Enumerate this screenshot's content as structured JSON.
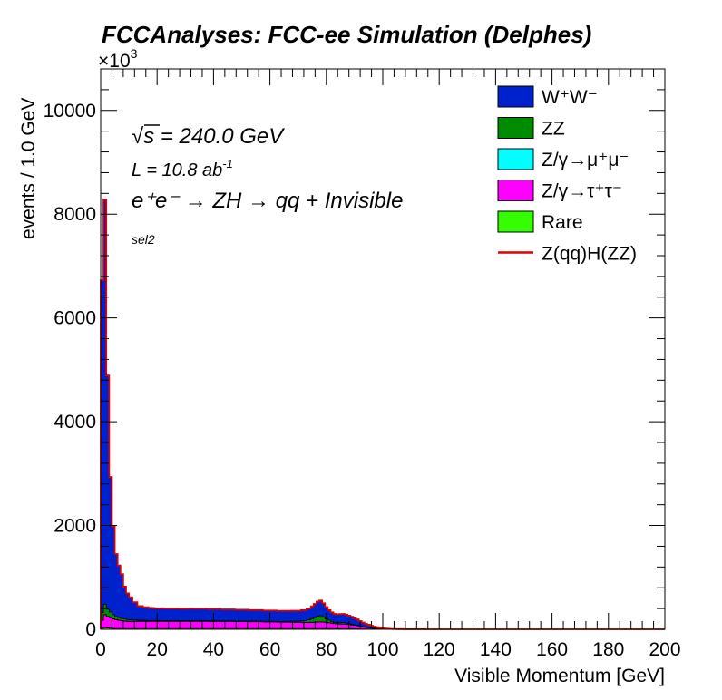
{
  "chart_data": {
    "type": "area",
    "title": "FCCAnalyses: FCC-ee Simulation (Delphes)",
    "xlabel": "Visible Momentum [GeV]",
    "ylabel": "events / 1.0 GeV",
    "y_multiplier": "×10",
    "y_multiplier_exp": "3",
    "xlim": [
      0,
      200
    ],
    "ylim": [
      0,
      10800
    ],
    "x_ticks": [
      "0",
      "20",
      "40",
      "60",
      "80",
      "100",
      "120",
      "140",
      "160",
      "180",
      "200"
    ],
    "y_ticks": [
      "0",
      "2000",
      "4000",
      "6000",
      "8000",
      "10000"
    ],
    "annotations": {
      "sqrt_s": "s = 240.0 GeV",
      "sqrt_symbol": "√",
      "lumi": "L = 10.8 ab",
      "lumi_exp": "-1",
      "process": "e⁺e⁻ → ZH → qq + Invisible",
      "selection": "sel2"
    },
    "legend_position": "top-right",
    "x": [
      0.5,
      1.5,
      2.5,
      3.5,
      4.5,
      5.5,
      6.5,
      7.5,
      8.5,
      9.5,
      10.5,
      12,
      14,
      16,
      18,
      20,
      25,
      30,
      35,
      40,
      45,
      50,
      55,
      60,
      65,
      70,
      72,
      74,
      75,
      76,
      77,
      78,
      79,
      80,
      81,
      82,
      83,
      84,
      85,
      86,
      87,
      88,
      89,
      90,
      91,
      92,
      93,
      94,
      95,
      96,
      97,
      98,
      99,
      100,
      101,
      102,
      103,
      104,
      105,
      110,
      120,
      140,
      160,
      180,
      200
    ],
    "series": [
      {
        "name": "W⁺W⁻",
        "color": "#0022cc",
        "values": [
          6400,
          7800,
          4500,
          2600,
          1700,
          1200,
          1000,
          850,
          620,
          500,
          430,
          340,
          270,
          250,
          240,
          235,
          232,
          230,
          228,
          225,
          220,
          215,
          210,
          205,
          200,
          200,
          205,
          215,
          235,
          260,
          280,
          290,
          260,
          220,
          190,
          170,
          160,
          160,
          165,
          165,
          160,
          150,
          140,
          125,
          115,
          95,
          80,
          65,
          55,
          42,
          34,
          26,
          20,
          15,
          11,
          8,
          6,
          4,
          3,
          1,
          0,
          0,
          0,
          0,
          0
        ]
      },
      {
        "name": "ZZ",
        "color": "#008c00",
        "values": [
          150,
          200,
          140,
          110,
          80,
          60,
          50,
          45,
          40,
          35,
          30,
          25,
          20,
          18,
          15,
          14,
          12,
          12,
          12,
          12,
          12,
          12,
          12,
          12,
          14,
          20,
          30,
          50,
          70,
          90,
          110,
          120,
          100,
          70,
          50,
          35,
          25,
          22,
          25,
          28,
          25,
          20,
          15,
          10,
          7,
          5,
          3,
          2,
          1,
          1,
          0,
          0,
          0,
          0,
          0,
          0,
          0,
          0,
          0,
          0,
          0,
          0,
          0,
          0,
          0
        ]
      },
      {
        "name": "Z/γ→μ⁺μ⁻",
        "color": "#00ffff",
        "values": [
          2,
          3,
          2,
          2,
          2,
          2,
          2,
          2,
          2,
          2,
          2,
          2,
          2,
          2,
          2,
          2,
          2,
          2,
          2,
          2,
          2,
          2,
          2,
          2,
          2,
          2,
          2,
          2,
          2,
          2,
          2,
          2,
          2,
          2,
          2,
          2,
          2,
          2,
          2,
          2,
          2,
          2,
          2,
          2,
          2,
          1,
          1,
          1,
          1,
          1,
          1,
          1,
          1,
          1,
          0,
          0,
          0,
          0,
          0,
          0,
          0,
          0,
          0,
          0,
          0
        ]
      },
      {
        "name": "Z/γ→τ⁺τ⁻",
        "color": "#ff00ff",
        "values": [
          150,
          250,
          220,
          200,
          180,
          170,
          160,
          150,
          145,
          140,
          140,
          140,
          140,
          140,
          140,
          140,
          140,
          140,
          140,
          138,
          136,
          134,
          132,
          128,
          124,
          120,
          118,
          118,
          120,
          122,
          125,
          128,
          125,
          120,
          112,
          105,
          95,
          90,
          88,
          86,
          82,
          78,
          70,
          62,
          55,
          45,
          38,
          30,
          25,
          18,
          14,
          10,
          7,
          5,
          3,
          2,
          1,
          1,
          0,
          0,
          0,
          0,
          0,
          0,
          0
        ]
      },
      {
        "name": "Rare",
        "color": "#33ff00",
        "values": [
          20,
          30,
          25,
          20,
          18,
          15,
          14,
          13,
          12,
          12,
          12,
          12,
          12,
          12,
          12,
          12,
          12,
          12,
          12,
          12,
          12,
          12,
          12,
          12,
          12,
          12,
          12,
          12,
          12,
          12,
          12,
          12,
          12,
          12,
          12,
          12,
          12,
          12,
          12,
          12,
          12,
          12,
          12,
          12,
          10,
          8,
          6,
          5,
          4,
          3,
          2,
          2,
          1,
          1,
          0,
          0,
          0,
          0,
          0,
          0,
          0,
          0,
          0,
          0,
          0
        ]
      },
      {
        "name": "Z(qq)H(ZZ)",
        "color": "#dd0000",
        "values": [
          2,
          3,
          3,
          3,
          3,
          3,
          3,
          3,
          3,
          3,
          3,
          3,
          3,
          3,
          3,
          3,
          3,
          3,
          3,
          3,
          3,
          3,
          3,
          3,
          3,
          3,
          3,
          3,
          3,
          3,
          3,
          3,
          3,
          3,
          3,
          3,
          3,
          3,
          3,
          3,
          3,
          3,
          3,
          3,
          3,
          3,
          2,
          2,
          2,
          2,
          2,
          1,
          1,
          1,
          1,
          0,
          0,
          0,
          0,
          0,
          0,
          0,
          0,
          0,
          0
        ]
      }
    ]
  },
  "colors": {
    "frame": "#000000",
    "stack_outline": "#000000"
  }
}
